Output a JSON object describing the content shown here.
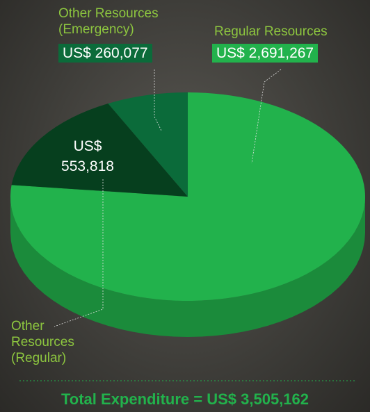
{
  "chart_data": {
    "type": "pie",
    "title": "Total Expenditure = US$ 3,505,162",
    "series": [
      {
        "name": "Regular Resources",
        "color": "#22b24c",
        "values": [
          2691267
        ],
        "value_labels": [
          "US$ 2,691,267"
        ]
      },
      {
        "name": "Other Resources (Regular)",
        "color": "#063f1e",
        "values": [
          553818
        ],
        "value_labels": [
          "US$ 553,818"
        ]
      },
      {
        "name": "Other Resources (Emergency)",
        "color": "#0b6b3a",
        "values": [
          260077
        ],
        "value_labels": [
          "US$ 260,077"
        ]
      }
    ]
  }
}
